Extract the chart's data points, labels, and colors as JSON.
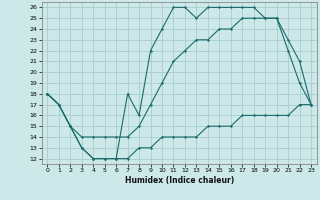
{
  "xlabel": "Humidex (Indice chaleur)",
  "background_color": "#cce8e8",
  "grid_color": "#aacccc",
  "line_color": "#1a6b6b",
  "xlim": [
    -0.5,
    23.5
  ],
  "ylim": [
    11.5,
    26.5
  ],
  "xticks": [
    0,
    1,
    2,
    3,
    4,
    5,
    6,
    7,
    8,
    9,
    10,
    11,
    12,
    13,
    14,
    15,
    16,
    17,
    18,
    19,
    20,
    21,
    22,
    23
  ],
  "yticks": [
    12,
    13,
    14,
    15,
    16,
    17,
    18,
    19,
    20,
    21,
    22,
    23,
    24,
    25,
    26
  ],
  "hours": [
    0,
    1,
    2,
    3,
    4,
    5,
    6,
    7,
    8,
    9,
    10,
    11,
    12,
    13,
    14,
    15,
    16,
    17,
    18,
    19,
    20,
    21,
    22,
    23
  ],
  "line_top": [
    18,
    17,
    15,
    13,
    12,
    12,
    12,
    18,
    16,
    22,
    24,
    26,
    26,
    25,
    26,
    26,
    26,
    26,
    26,
    25,
    25,
    22,
    19,
    17
  ],
  "line_mid": [
    18,
    17,
    15,
    14,
    14,
    14,
    14,
    14,
    15,
    17,
    19,
    21,
    22,
    23,
    23,
    24,
    24,
    25,
    25,
    25,
    25,
    23,
    21,
    17
  ],
  "line_bot": [
    18,
    17,
    15,
    13,
    12,
    12,
    12,
    12,
    13,
    13,
    14,
    14,
    14,
    14,
    15,
    15,
    15,
    16,
    16,
    16,
    16,
    16,
    17,
    17
  ]
}
